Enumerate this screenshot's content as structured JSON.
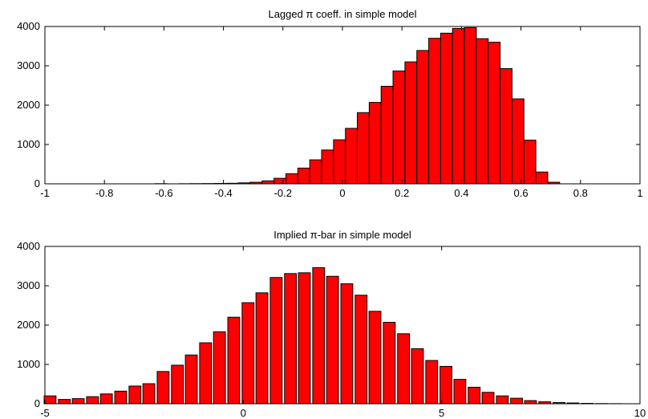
{
  "colors": {
    "bar_fill": "#ff0000",
    "bar_edge": "#000000",
    "axes": "#000000",
    "background": "#ffffff"
  },
  "chart_data": [
    {
      "type": "bar",
      "title": "Lagged π coeff. in simple model",
      "xlabel": "",
      "ylabel": "",
      "xlim": [
        -1,
        1
      ],
      "ylim": [
        0,
        4000
      ],
      "xticks": [
        -1,
        -0.8,
        -0.6,
        -0.4,
        -0.2,
        0,
        0.2,
        0.4,
        0.6,
        0.8,
        1
      ],
      "xtick_labels": [
        "-1",
        "-0.8",
        "-0.6",
        "-0.4",
        "-0.2",
        "0",
        "0.2",
        "0.4",
        "0.6",
        "0.8",
        "1"
      ],
      "yticks": [
        0,
        1000,
        2000,
        3000,
        4000
      ],
      "ytick_labels": [
        "0",
        "1000",
        "2000",
        "3000",
        "4000"
      ],
      "bar_width": 0.04,
      "grid": false,
      "x": [
        -0.61,
        -0.53,
        -0.49,
        -0.45,
        -0.41,
        -0.37,
        -0.33,
        -0.29,
        -0.25,
        -0.21,
        -0.17,
        -0.13,
        -0.09,
        -0.05,
        -0.01,
        0.03,
        0.07,
        0.11,
        0.15,
        0.19,
        0.23,
        0.27,
        0.31,
        0.35,
        0.39,
        0.43,
        0.47,
        0.51,
        0.55,
        0.59,
        0.63,
        0.67,
        0.71,
        0.75,
        0.79,
        0.83,
        0.87
      ],
      "values": [
        4,
        3,
        5,
        7,
        10,
        14,
        24,
        40,
        75,
        140,
        255,
        400,
        610,
        860,
        1120,
        1410,
        1810,
        2070,
        2480,
        2870,
        3100,
        3390,
        3700,
        3830,
        3950,
        3970,
        3690,
        3600,
        2930,
        2160,
        1110,
        300,
        40,
        0,
        0,
        0,
        0
      ]
    },
    {
      "type": "bar",
      "title": "Implied π-bar in simple model",
      "xlabel": "",
      "ylabel": "",
      "xlim": [
        -5,
        10
      ],
      "ylim": [
        0,
        4000
      ],
      "xticks": [
        -5,
        0,
        5,
        10
      ],
      "xtick_labels": [
        "-5",
        "0",
        "5",
        "10"
      ],
      "yticks": [
        0,
        1000,
        2000,
        3000,
        4000
      ],
      "ytick_labels": [
        "0",
        "1000",
        "2000",
        "3000",
        "4000"
      ],
      "bar_width": 0.3,
      "grid": false,
      "x": [
        -4.87,
        -4.51,
        -4.16,
        -3.8,
        -3.45,
        -3.09,
        -2.73,
        -2.38,
        -2.02,
        -1.66,
        -1.31,
        -0.95,
        -0.6,
        -0.24,
        0.12,
        0.47,
        0.83,
        1.19,
        1.54,
        1.9,
        2.25,
        2.61,
        2.97,
        3.32,
        3.68,
        4.04,
        4.39,
        4.75,
        5.11,
        5.46,
        5.82,
        6.17,
        6.53,
        6.89,
        7.24,
        7.6,
        7.96,
        8.31,
        8.67,
        9.03,
        9.38
      ],
      "values": [
        200,
        110,
        130,
        180,
        250,
        320,
        450,
        510,
        820,
        980,
        1240,
        1550,
        1830,
        2200,
        2570,
        2820,
        3210,
        3310,
        3330,
        3460,
        3240,
        3050,
        2760,
        2350,
        2070,
        1780,
        1400,
        1100,
        950,
        620,
        420,
        290,
        200,
        140,
        80,
        50,
        30,
        20,
        10,
        5,
        2
      ]
    }
  ]
}
